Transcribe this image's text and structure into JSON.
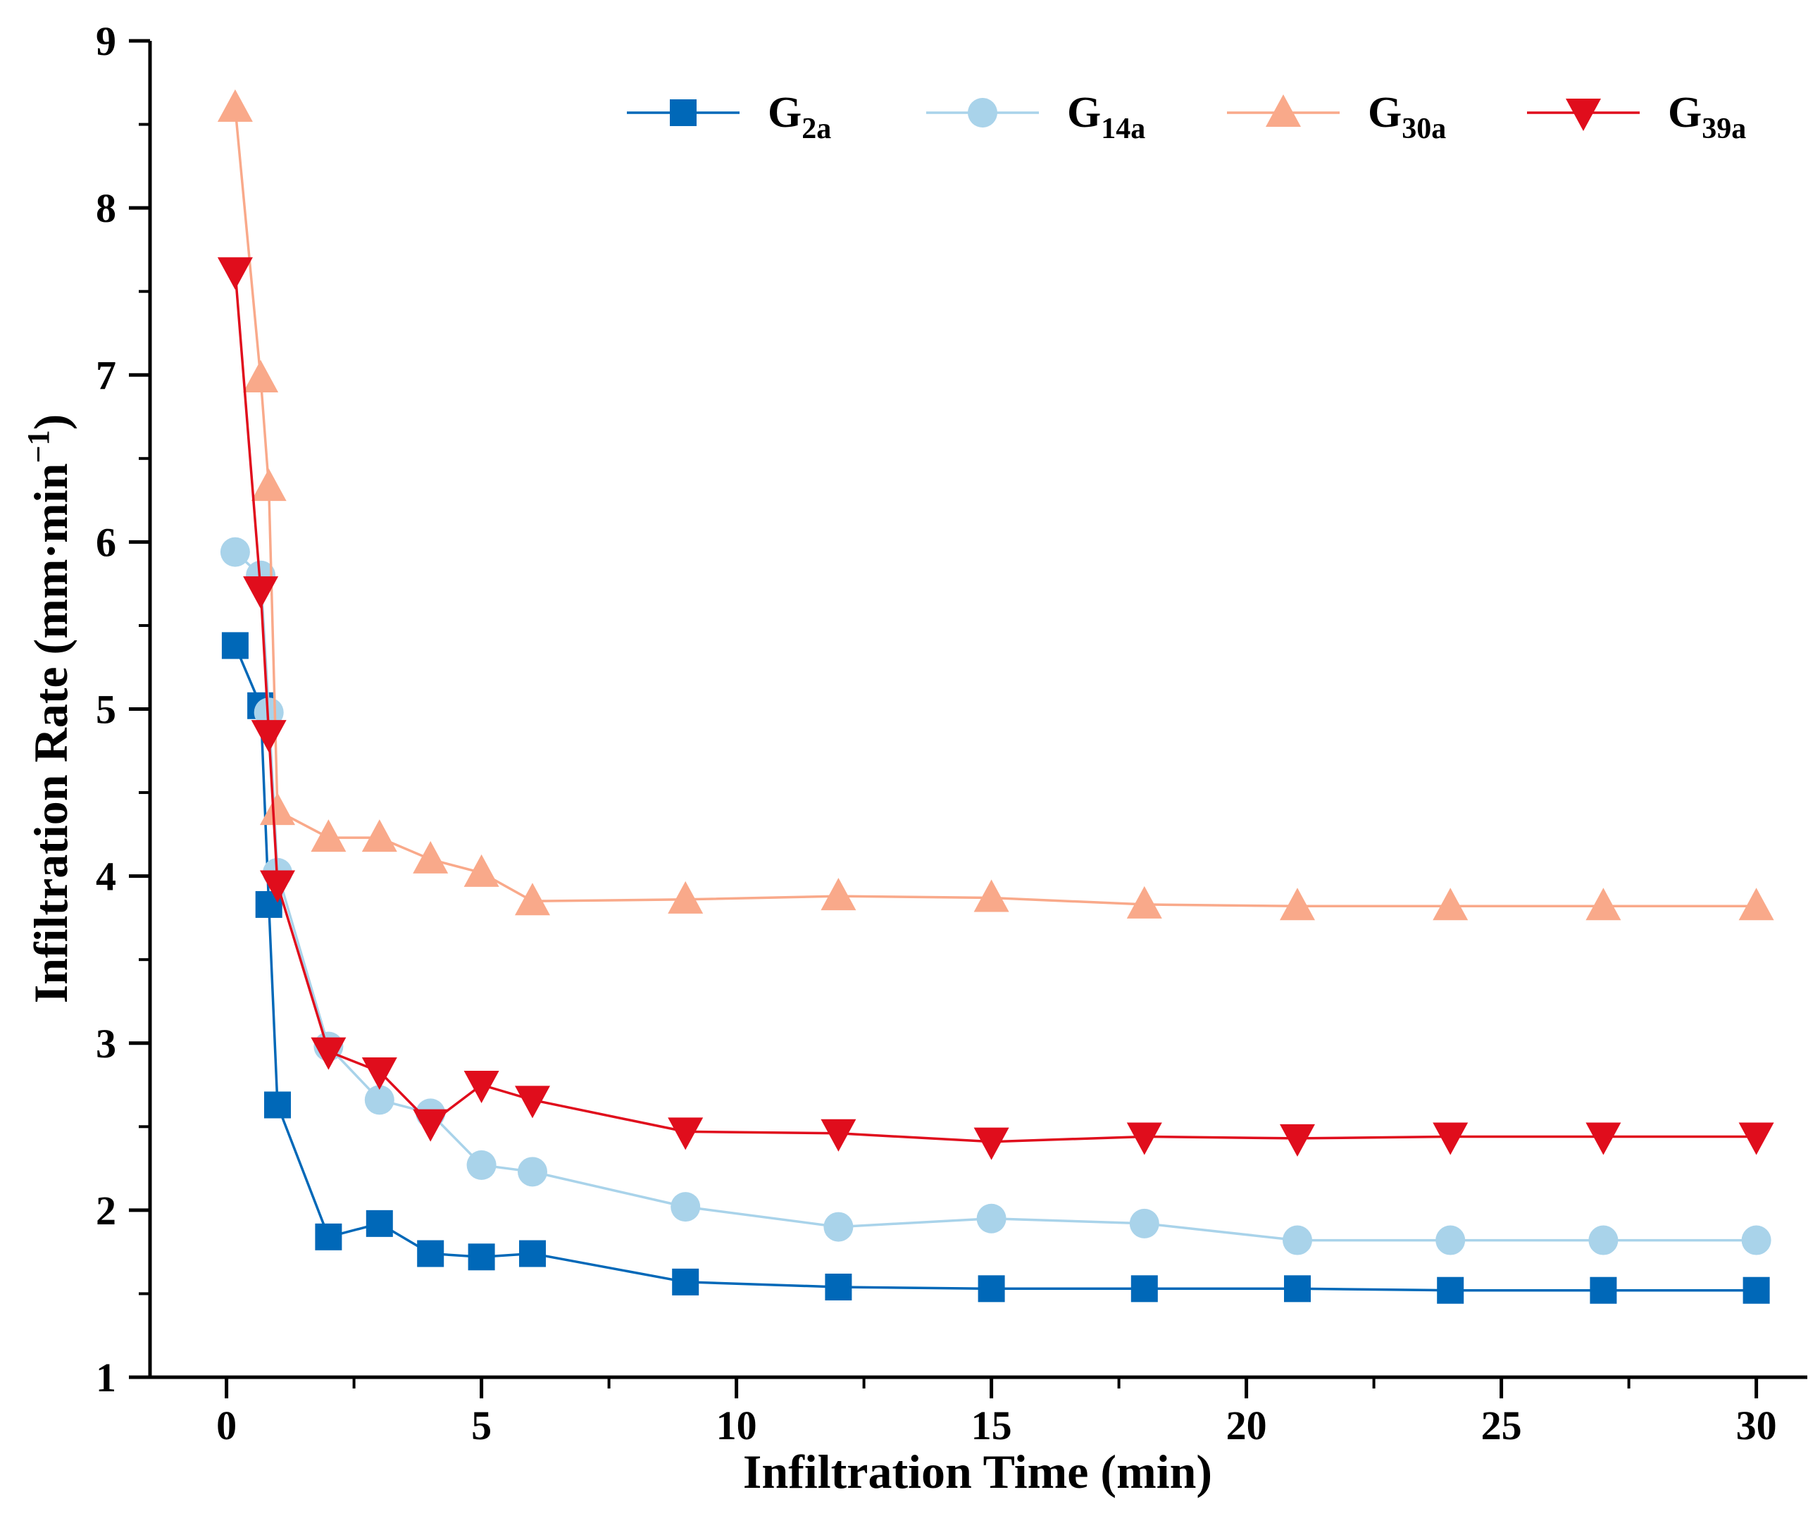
{
  "chart_data": {
    "type": "line",
    "xlabel": "Infiltration Time (min)",
    "ylabel_main": "Infiltration Rate (mm·min",
    "ylabel_sup": "−1",
    "ylabel_close": ")",
    "xlim": [
      -1.5,
      31
    ],
    "ylim": [
      1,
      9
    ],
    "xticks": [
      0,
      5,
      10,
      15,
      20,
      25,
      30
    ],
    "yticks": [
      1,
      2,
      3,
      4,
      5,
      6,
      7,
      8,
      9
    ],
    "xtick_labels": [
      "0",
      "5",
      "10",
      "15",
      "20",
      "25",
      "30"
    ],
    "ytick_labels": [
      "1",
      "2",
      "3",
      "4",
      "5",
      "6",
      "7",
      "8",
      "9"
    ],
    "grid": false,
    "legend_position": "top-right",
    "series": [
      {
        "name_base": "G",
        "name_sub": "2a",
        "color": "#0068b8",
        "marker": "square",
        "x": [
          0.17,
          0.67,
          0.83,
          1,
          2,
          3,
          4,
          5,
          6,
          9,
          12,
          15,
          18,
          21,
          24,
          27,
          30
        ],
        "y": [
          5.38,
          5.02,
          3.83,
          2.63,
          1.84,
          1.92,
          1.74,
          1.72,
          1.74,
          1.57,
          1.54,
          1.53,
          1.53,
          1.53,
          1.52,
          1.52,
          1.52
        ]
      },
      {
        "name_base": "G",
        "name_sub": "14a",
        "color": "#a9d3ea",
        "marker": "circle",
        "x": [
          0.17,
          0.67,
          0.83,
          1,
          2,
          3,
          4,
          5,
          6,
          9,
          12,
          15,
          18,
          21,
          24,
          27,
          30
        ],
        "y": [
          5.94,
          5.8,
          4.98,
          4.02,
          2.98,
          2.66,
          2.58,
          2.27,
          2.23,
          2.02,
          1.9,
          1.95,
          1.92,
          1.82,
          1.82,
          1.82,
          1.82
        ]
      },
      {
        "name_base": "G",
        "name_sub": "30a",
        "color": "#f9a98a",
        "marker": "triangle-up",
        "x": [
          0.17,
          0.67,
          0.83,
          1,
          2,
          3,
          4,
          5,
          6,
          9,
          12,
          15,
          18,
          21,
          24,
          27,
          30
        ],
        "y": [
          8.6,
          6.98,
          6.33,
          4.39,
          4.23,
          4.23,
          4.1,
          4.02,
          3.85,
          3.86,
          3.88,
          3.87,
          3.83,
          3.82,
          3.82,
          3.82,
          3.82
        ]
      },
      {
        "name_base": "G",
        "name_sub": "39a",
        "color": "#e00d1c",
        "marker": "triangle-down",
        "x": [
          0.17,
          0.67,
          0.83,
          1,
          2,
          3,
          4,
          5,
          6,
          9,
          12,
          15,
          18,
          21,
          24,
          27,
          30
        ],
        "y": [
          7.62,
          5.71,
          4.85,
          3.95,
          2.95,
          2.83,
          2.52,
          2.75,
          2.66,
          2.47,
          2.46,
          2.41,
          2.44,
          2.43,
          2.44,
          2.44,
          2.44
        ]
      }
    ]
  }
}
